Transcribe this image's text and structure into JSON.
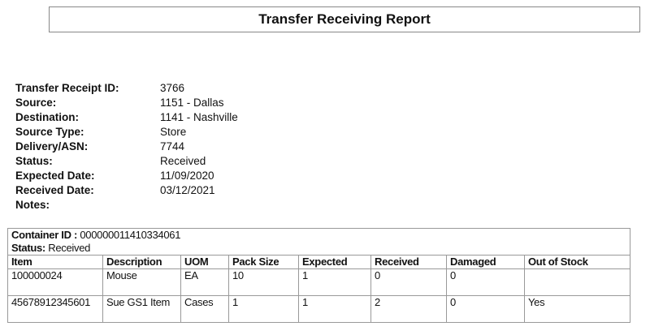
{
  "title": "Transfer Receiving Report",
  "info": [
    {
      "label": "Transfer Receipt ID:",
      "value": "3766"
    },
    {
      "label": "Source:",
      "value": "1151 - Dallas"
    },
    {
      "label": "Destination:",
      "value": "1141 - Nashville"
    },
    {
      "label": "Source Type:",
      "value": "Store"
    },
    {
      "label": "Delivery/ASN:",
      "value": "7744"
    },
    {
      "label": "Status:",
      "value": "Received"
    },
    {
      "label": "Expected Date:",
      "value": "11/09/2020"
    },
    {
      "label": "Received Date:",
      "value": "03/12/2021"
    },
    {
      "label": "Notes:",
      "value": ""
    }
  ],
  "container": {
    "id_label": "Container ID :",
    "id_value": " 000000011410334061",
    "status_label": "Status:",
    "status_value": " Received",
    "columns": [
      "Item",
      "Description",
      "UOM",
      "Pack Size",
      "Expected",
      "Received",
      "Damaged",
      "Out of Stock"
    ],
    "rows": [
      [
        "100000024",
        "Mouse",
        "EA",
        "10",
        "1",
        "0",
        "0",
        ""
      ],
      [
        "45678912345601",
        "Sue GS1 Item",
        "Cases",
        "1",
        "1",
        "2",
        "0",
        "Yes"
      ]
    ]
  }
}
